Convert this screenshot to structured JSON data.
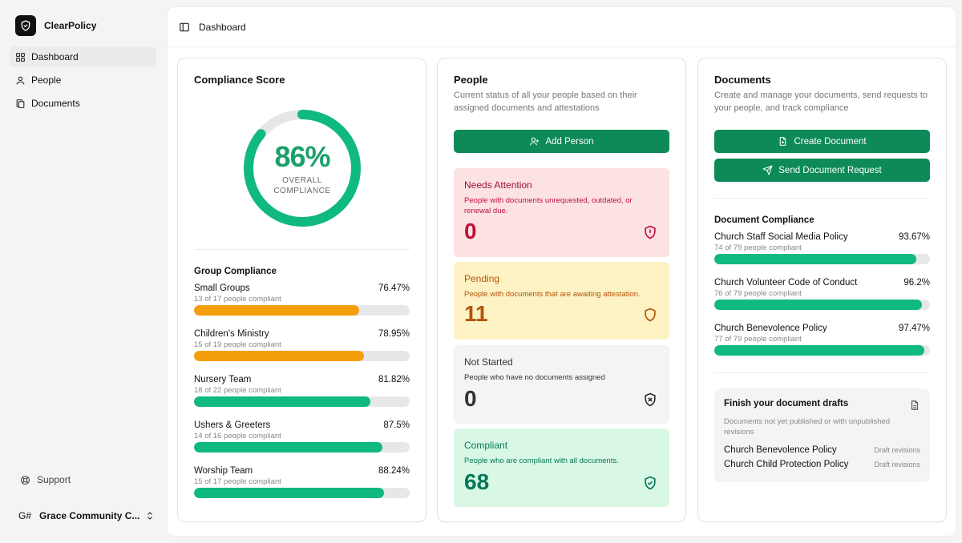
{
  "app": {
    "name": "ClearPolicy"
  },
  "sidebar": {
    "items": [
      {
        "label": "Dashboard",
        "icon": "grid-icon",
        "active": true
      },
      {
        "label": "People",
        "icon": "user-icon",
        "active": false
      },
      {
        "label": "Documents",
        "icon": "copy-icon",
        "active": false
      }
    ],
    "support_label": "Support",
    "org": {
      "initials": "G#",
      "name": "Grace Community C..."
    }
  },
  "header": {
    "breadcrumb": "Dashboard"
  },
  "compliance_card": {
    "title": "Compliance Score",
    "score": {
      "value_label": "86%",
      "value": 86,
      "label": "OVERALL COMPLIANCE"
    },
    "group_title": "Group Compliance",
    "groups": [
      {
        "name": "Small Groups",
        "percent_label": "76.47%",
        "percent": 76.47,
        "sub": "13 of 17 people compliant",
        "color": "#f59e0b"
      },
      {
        "name": "Children's Ministry",
        "percent_label": "78.95%",
        "percent": 78.95,
        "sub": "15 of 19 people compliant",
        "color": "#f59e0b"
      },
      {
        "name": "Nursery Team",
        "percent_label": "81.82%",
        "percent": 81.82,
        "sub": "18 of 22 people compliant",
        "color": "#10b981"
      },
      {
        "name": "Ushers & Greeters",
        "percent_label": "87.5%",
        "percent": 87.5,
        "sub": "14 of 16 people compliant",
        "color": "#10b981"
      },
      {
        "name": "Worship Team",
        "percent_label": "88.24%",
        "percent": 88.24,
        "sub": "15 of 17 people compliant",
        "color": "#10b981"
      }
    ]
  },
  "people_card": {
    "title": "People",
    "subtitle": "Current status of all your people based on their assigned documents and attestations",
    "add_button": "Add Person",
    "statuses": [
      {
        "title": "Needs Attention",
        "desc": "People with documents unrequested, outdated, or renewal due.",
        "count": "0",
        "bg": "#fde2e2",
        "fg": "#be123c",
        "title_color": "#9f1239",
        "icon": "shield-alert-icon"
      },
      {
        "title": "Pending",
        "desc": "People with documents that are awaiting attestation.",
        "count": "11",
        "bg": "#fdf2c4",
        "fg": "#b45309",
        "title_color": "#b45309",
        "icon": "shield-ellipsis-icon"
      },
      {
        "title": "Not Started",
        "desc": "People who have no documents assigned",
        "count": "0",
        "bg": "#f4f4f5",
        "fg": "#333333",
        "title_color": "#333333",
        "icon": "shield-x-icon"
      },
      {
        "title": "Compliant",
        "desc": "People who are compliant with all documents.",
        "count": "68",
        "bg": "#d8f7e5",
        "fg": "#047857",
        "title_color": "#047857",
        "icon": "shield-check-icon"
      }
    ]
  },
  "documents_card": {
    "title": "Documents",
    "subtitle": "Create and manage your documents, send requests to your people, and track compliance",
    "create_button": "Create Document",
    "send_button": "Send Document Request",
    "compliance_title": "Document Compliance",
    "documents": [
      {
        "name": "Church Staff Social Media Policy",
        "percent_label": "93.67%",
        "percent": 93.67,
        "sub": "74 of 79 people compliant"
      },
      {
        "name": "Church Volunteer Code of Conduct",
        "percent_label": "96.2%",
        "percent": 96.2,
        "sub": "76 of 79 people compliant"
      },
      {
        "name": "Church Benevolence Policy",
        "percent_label": "97.47%",
        "percent": 97.47,
        "sub": "77 of 79 people compliant"
      }
    ],
    "drafts": {
      "title": "Finish your document drafts",
      "subtitle": "Documents not yet published or with unpublished revisions",
      "items": [
        {
          "name": "Church Benevolence Policy",
          "tag": "Draft revisions"
        },
        {
          "name": "Church Child Protection Policy",
          "tag": "Draft revisions"
        }
      ]
    }
  },
  "colors": {
    "accent": "#0d8a57",
    "green": "#10b981",
    "orange": "#f59e0b",
    "track": "#e7e7e9"
  }
}
